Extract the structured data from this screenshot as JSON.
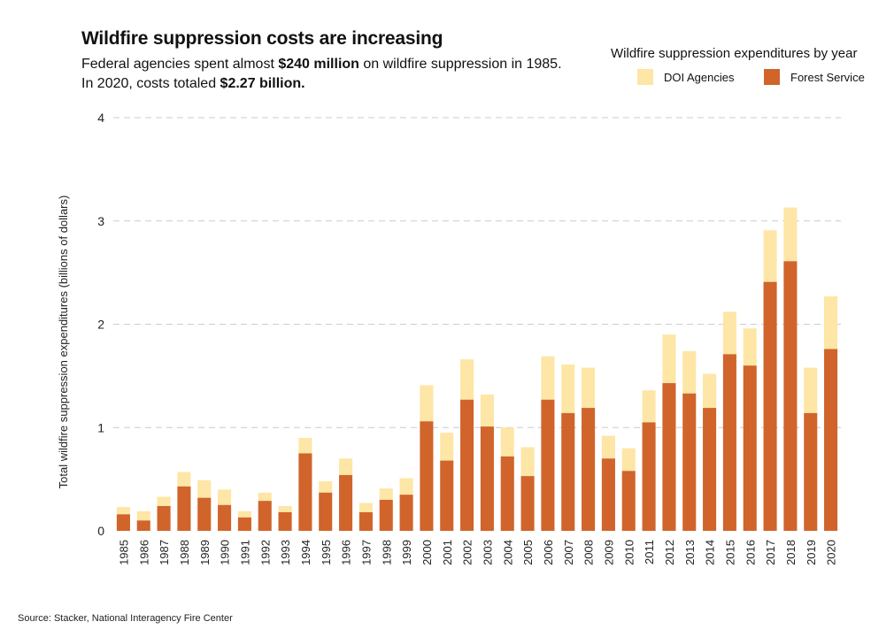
{
  "title": "Wildfire suppression costs are increasing",
  "subtitle": {
    "part1": "Federal agencies spent almost ",
    "bold1": "$240 million",
    "part2": " on wildfire suppression in 1985. In 2020, costs totaled ",
    "bold2": "$2.27 billion."
  },
  "legend": {
    "title": "Wildfire suppression expenditures by year",
    "doi_label": "DOI Agencies",
    "fs_label": "Forest Service"
  },
  "source": "Source: Stacker, National Interagency Fire Center",
  "colors": {
    "doi": "#fde6a6",
    "forest_service": "#d0642b",
    "grid": "#cccccc"
  },
  "chart_data": {
    "type": "bar",
    "stacked": true,
    "ylabel": "Total wildfire suppression expenditures (billions of dollars)",
    "xlabel": "",
    "ylim": [
      0,
      4
    ],
    "yticks": [
      0,
      1,
      2,
      3,
      4
    ],
    "grid": true,
    "legend_position": "top-right",
    "categories": [
      "1985",
      "1986",
      "1987",
      "1988",
      "1989",
      "1990",
      "1991",
      "1992",
      "1993",
      "1994",
      "1995",
      "1996",
      "1997",
      "1998",
      "1999",
      "2000",
      "2001",
      "2002",
      "2003",
      "2004",
      "2005",
      "2006",
      "2007",
      "2008",
      "2009",
      "2010",
      "2011",
      "2012",
      "2013",
      "2014",
      "2015",
      "2016",
      "2017",
      "2018",
      "2019",
      "2020"
    ],
    "series": [
      {
        "name": "Forest Service",
        "values": [
          0.16,
          0.1,
          0.24,
          0.43,
          0.32,
          0.25,
          0.13,
          0.29,
          0.18,
          0.75,
          0.37,
          0.54,
          0.18,
          0.3,
          0.35,
          1.06,
          0.68,
          1.27,
          1.01,
          0.72,
          0.53,
          1.27,
          1.14,
          1.19,
          0.7,
          0.58,
          1.05,
          1.43,
          1.33,
          1.19,
          1.71,
          1.6,
          2.41,
          2.61,
          1.14,
          1.76
        ]
      },
      {
        "name": "DOI Agencies",
        "values": [
          0.07,
          0.09,
          0.09,
          0.14,
          0.17,
          0.15,
          0.06,
          0.08,
          0.06,
          0.15,
          0.11,
          0.16,
          0.09,
          0.11,
          0.16,
          0.35,
          0.27,
          0.39,
          0.31,
          0.28,
          0.28,
          0.42,
          0.47,
          0.39,
          0.22,
          0.22,
          0.31,
          0.47,
          0.41,
          0.33,
          0.41,
          0.36,
          0.5,
          0.52,
          0.44,
          0.51
        ]
      }
    ]
  }
}
